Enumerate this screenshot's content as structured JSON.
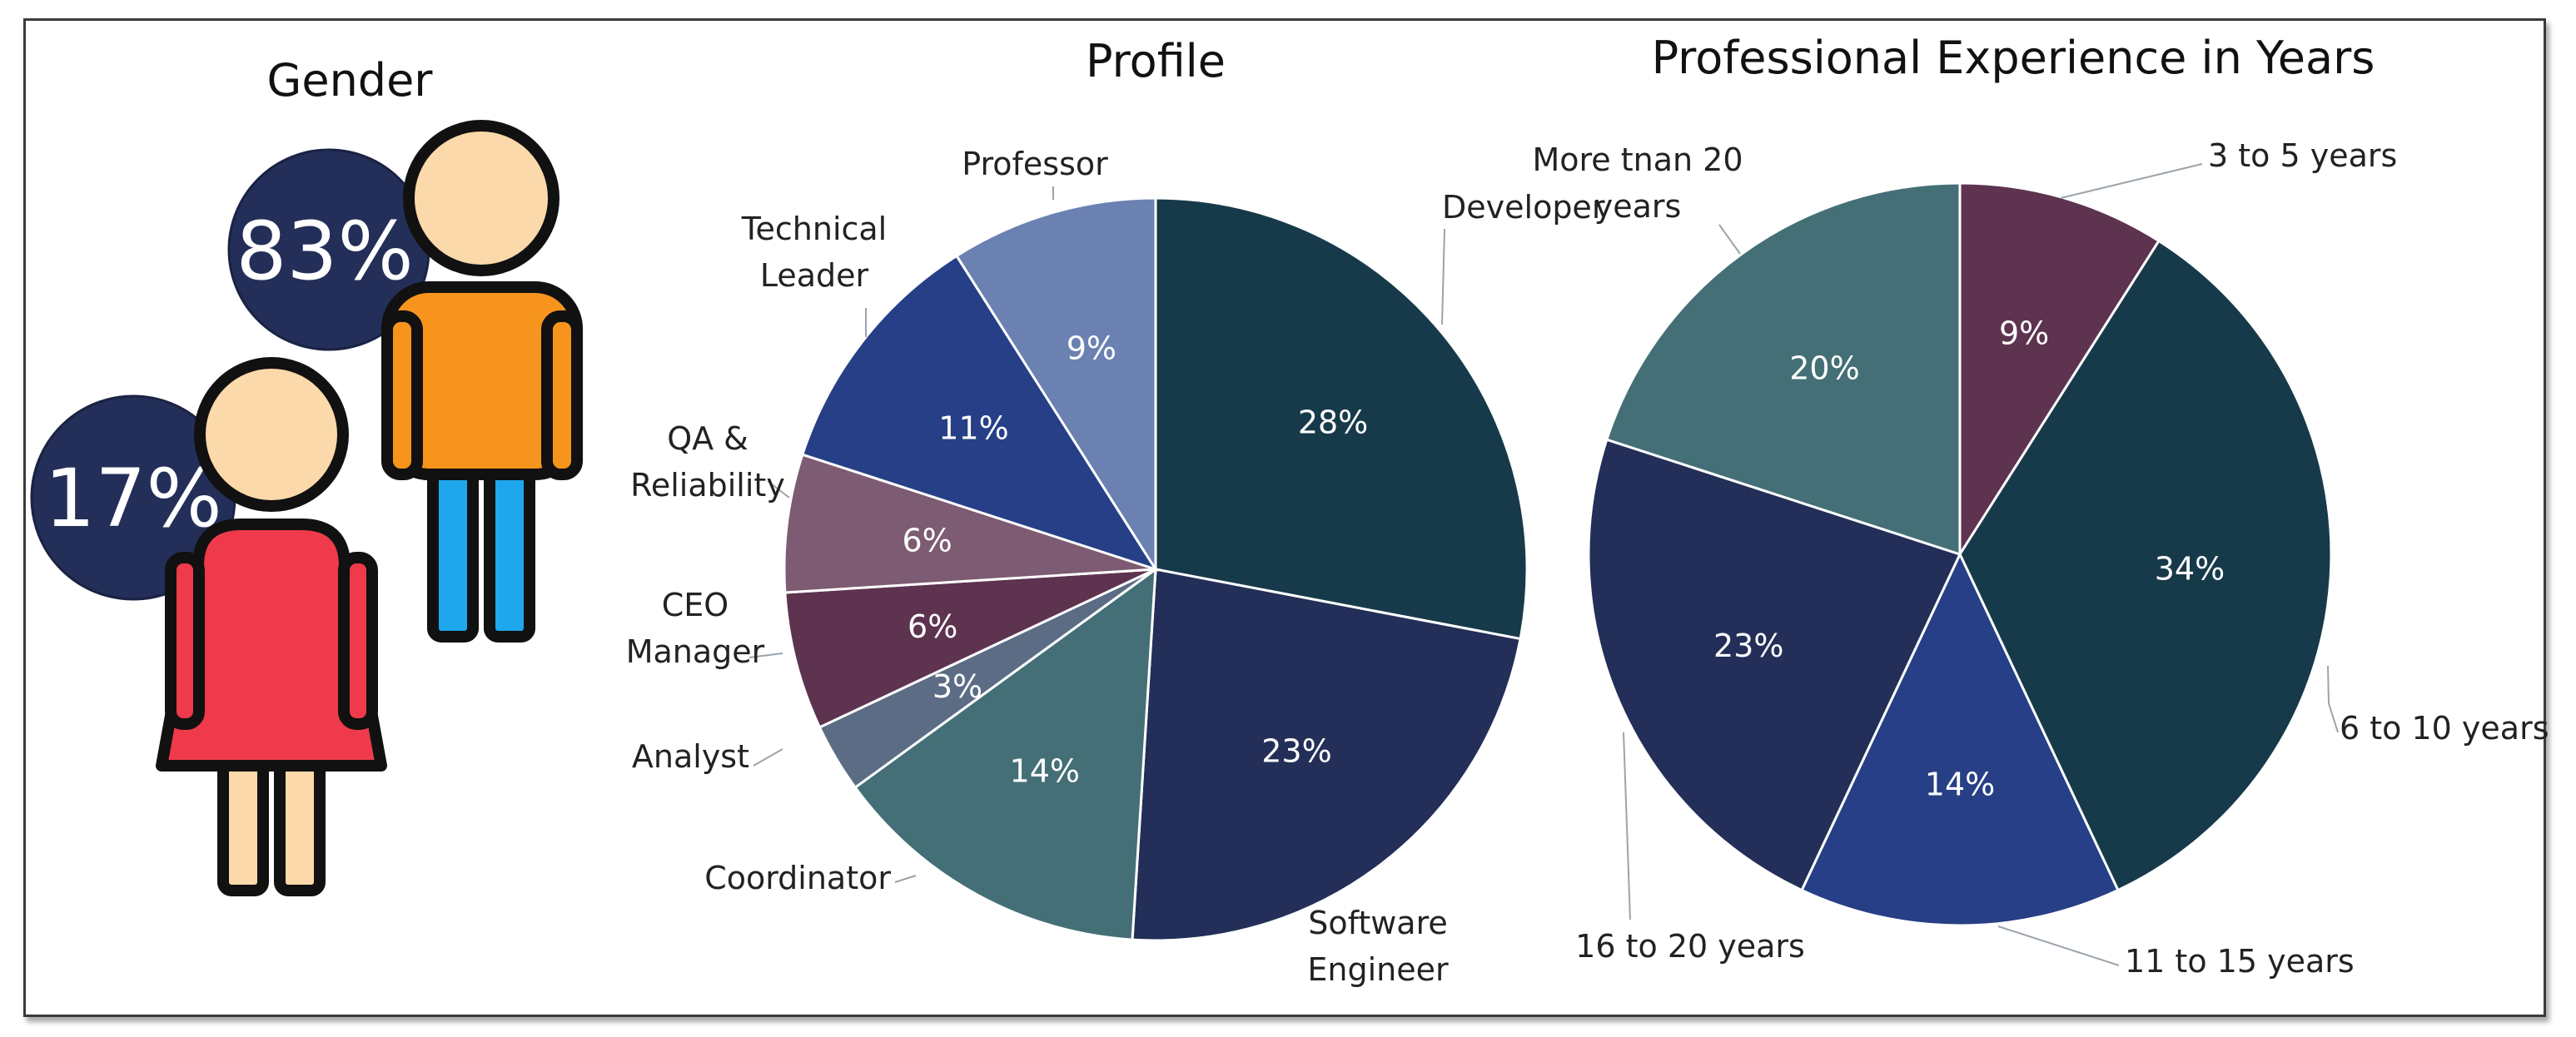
{
  "gender": {
    "title": "Gender",
    "male_pct": "83%",
    "female_pct": "17%"
  },
  "chart_data": [
    {
      "type": "pie",
      "title": "Profile",
      "categories": [
        "Developer",
        "Software Engineer",
        "Coordinator",
        "Analyst",
        "CEO Manager",
        "QA & Reliability",
        "Technical Leader",
        "Professor"
      ],
      "values": [
        28,
        23,
        14,
        3,
        6,
        6,
        11,
        9
      ],
      "value_labels": [
        "28%",
        "23%",
        "14%",
        "3%",
        "6%",
        "6%",
        "11%",
        "9%"
      ],
      "label_lines": [
        [
          "Developer"
        ],
        [
          "Software",
          "Engineer"
        ],
        [
          "Coordinator"
        ],
        [
          "Analyst"
        ],
        [
          "CEO",
          "Manager"
        ],
        [
          "QA &",
          "Reliability"
        ],
        [
          "Technical",
          "Leader"
        ],
        [
          "Professor"
        ]
      ],
      "colors": [
        "#173a4a",
        "#232f58",
        "#446f76",
        "#5b6c84",
        "#5e3350",
        "#7d5b73",
        "#263f86",
        "#6a81b1"
      ]
    },
    {
      "type": "pie",
      "title": "Professional Experience in Years",
      "categories": [
        "3 to 5 years",
        "6 to 10 years",
        "11 to 15 years",
        "16 to 20 years",
        "More tnan 20 years"
      ],
      "values": [
        9,
        34,
        14,
        23,
        20
      ],
      "value_labels": [
        "9%",
        "34%",
        "14%",
        "23%",
        "20%"
      ],
      "label_lines": [
        [
          "3 to 5 years"
        ],
        [
          "6 to 10 years"
        ],
        [
          "11 to 15 years"
        ],
        [
          "16 to 20 years"
        ],
        [
          "More tnan 20",
          "years"
        ]
      ],
      "colors": [
        "#5e3350",
        "#173a4a",
        "#263f86",
        "#232f58",
        "#446f76"
      ]
    }
  ]
}
